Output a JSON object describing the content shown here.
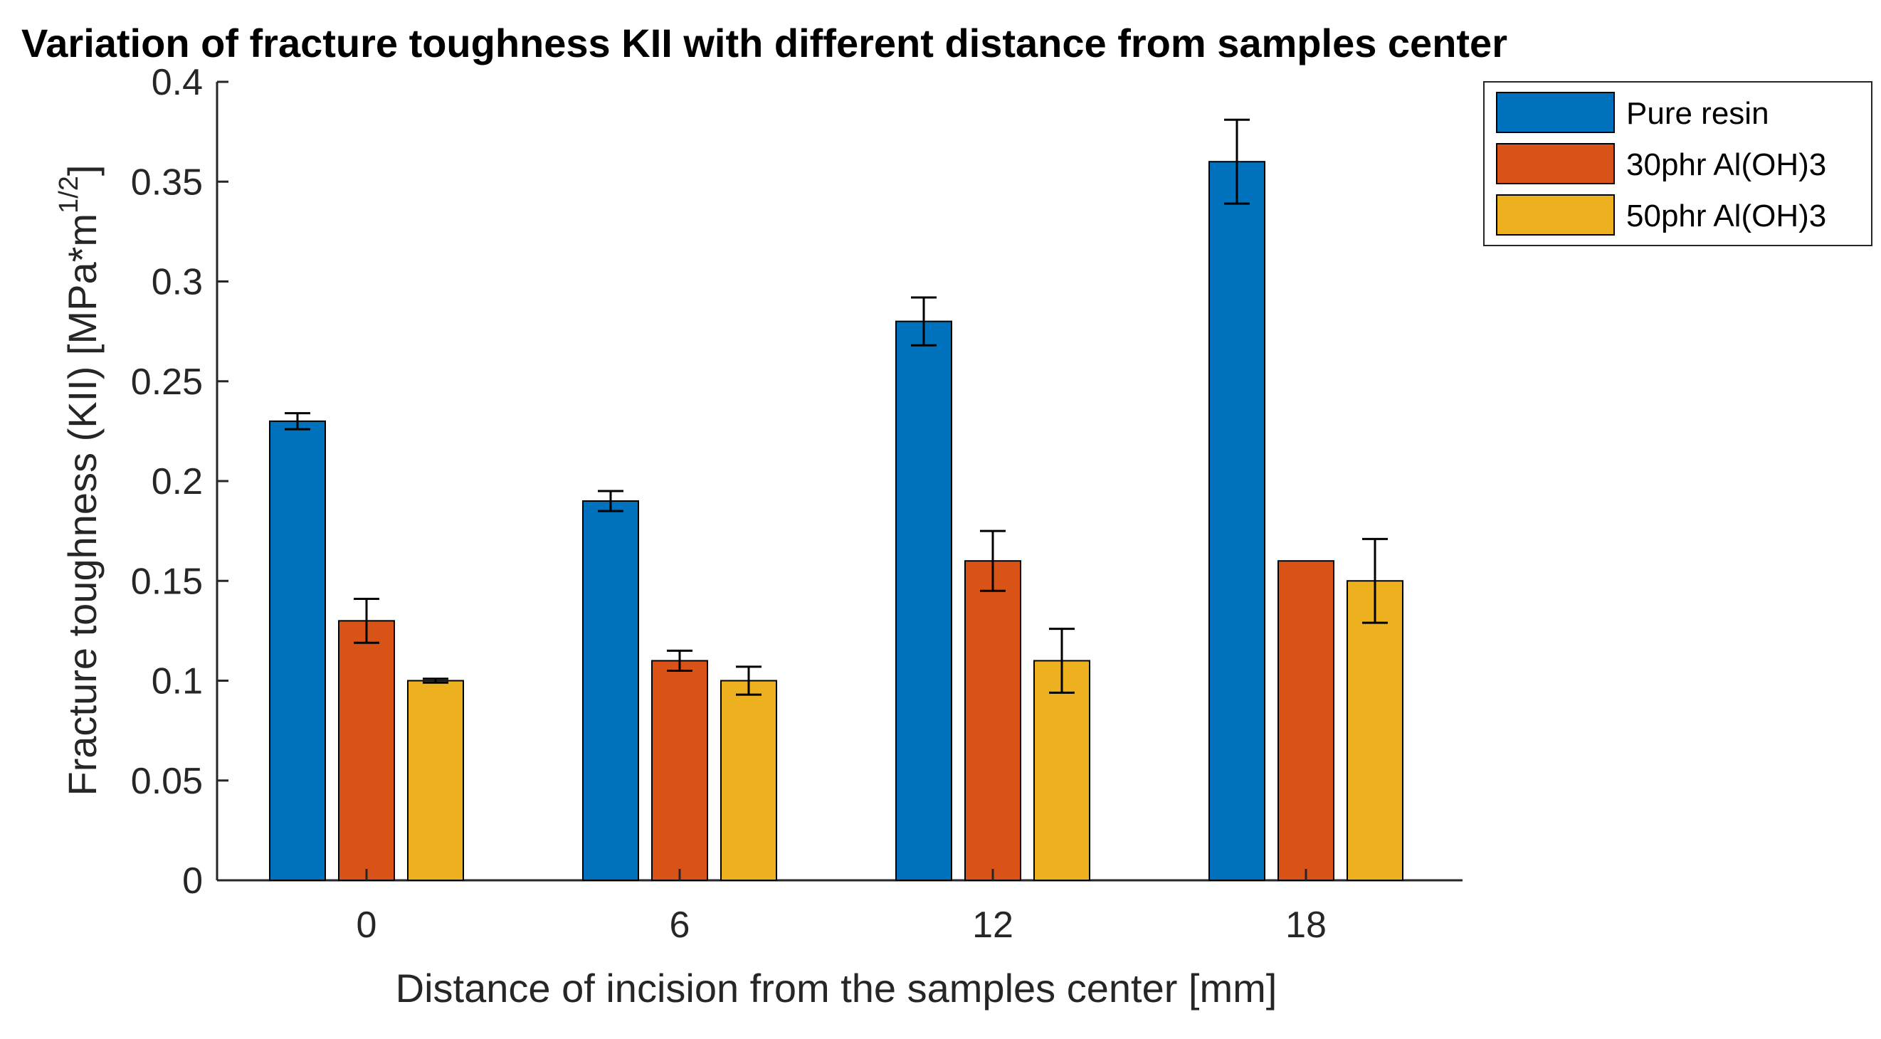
{
  "chart_data": {
    "type": "bar",
    "title": "Variation of fracture toughness KII with different distance from samples center",
    "xlabel": "Distance of incision from the samples center [mm]",
    "ylabel_main": "Fracture toughness (KII) [MPa*m",
    "ylabel_sup": "1/2",
    "ylabel_end": "]",
    "categories": [
      "0",
      "6",
      "12",
      "18"
    ],
    "ylim": [
      0,
      0.4
    ],
    "yticks": [
      0,
      0.05,
      0.1,
      0.15,
      0.2,
      0.25,
      0.3,
      0.35,
      0.4
    ],
    "ytick_labels": [
      "0",
      "0.05",
      "0.1",
      "0.15",
      "0.2",
      "0.25",
      "0.3",
      "0.35",
      "0.4"
    ],
    "grid": false,
    "legend_position": "top-right, outside axes",
    "series": [
      {
        "name": "Pure resin",
        "color": "#0072BD",
        "values": [
          0.23,
          0.19,
          0.28,
          0.36
        ],
        "errors": [
          0.004,
          0.005,
          0.012,
          0.021
        ]
      },
      {
        "name": "30phr Al(OH)3",
        "color": "#D95319",
        "values": [
          0.13,
          0.11,
          0.16,
          0.16
        ],
        "errors": [
          0.011,
          0.005,
          0.015,
          0.0
        ]
      },
      {
        "name": "50phr Al(OH)3",
        "color": "#EDB120",
        "values": [
          0.1,
          0.1,
          0.11,
          0.15
        ],
        "errors": [
          0.001,
          0.007,
          0.016,
          0.021
        ]
      }
    ]
  }
}
